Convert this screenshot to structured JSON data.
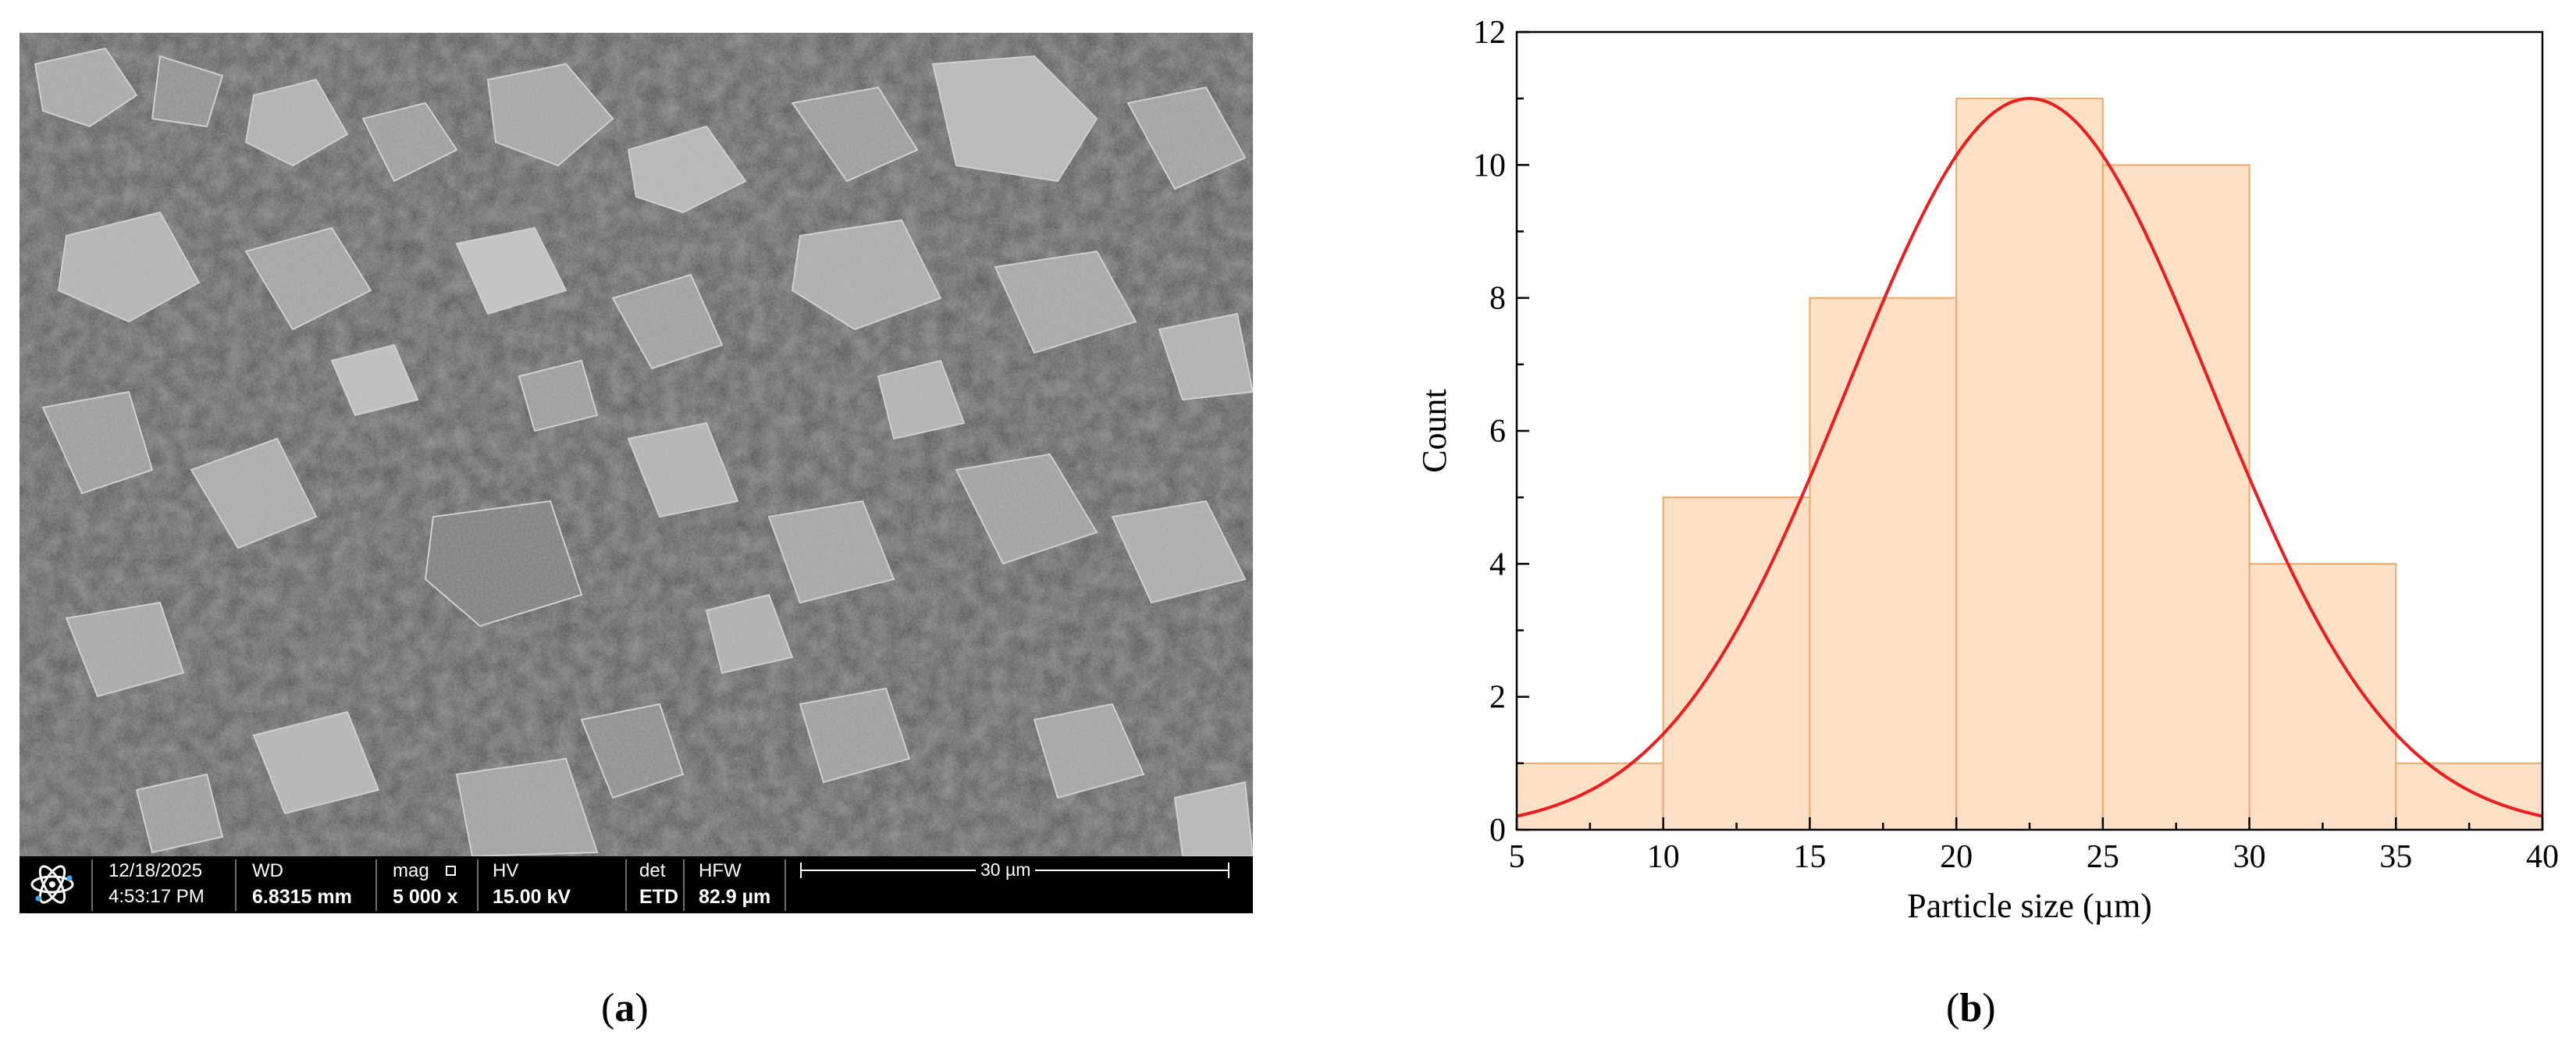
{
  "panel_a": {
    "caption_letter": "a",
    "databar": {
      "date": "12/18/2025",
      "time": "4:53:17 PM",
      "wd_label": "WD",
      "wd_value": "6.8315 mm",
      "mag_label": "mag",
      "mag_value": "5 000 x",
      "hv_label": "HV",
      "hv_value": "15.00 kV",
      "det_label": "det",
      "det_value": "ETD",
      "hfw_label": "HFW",
      "hfw_value": "82.9 µm",
      "scale_label": "30 µm",
      "logo_icon": "atom-icon"
    }
  },
  "panel_b": {
    "caption_letter": "b",
    "colors": {
      "bar_fill": "#fde0c5",
      "bar_stroke": "#f0a868",
      "fit_curve": "#ee1c1c"
    },
    "chart_data": {
      "type": "bar",
      "subtype": "histogram-with-normal-fit",
      "xlabel": "Particle size (µm)",
      "ylabel": "Count",
      "xlim": [
        5,
        40
      ],
      "ylim": [
        0,
        12
      ],
      "xticks": [
        5,
        10,
        15,
        20,
        25,
        30,
        35,
        40
      ],
      "yticks": [
        0,
        2,
        4,
        6,
        8,
        10,
        12
      ],
      "bins": [
        {
          "x0": 5,
          "x1": 10,
          "count": 1
        },
        {
          "x0": 10,
          "x1": 15,
          "count": 5
        },
        {
          "x0": 15,
          "x1": 20,
          "count": 8
        },
        {
          "x0": 20,
          "x1": 25,
          "count": 11
        },
        {
          "x0": 25,
          "x1": 30,
          "count": 10
        },
        {
          "x0": 30,
          "x1": 35,
          "count": 4
        },
        {
          "x0": 35,
          "x1": 40,
          "count": 1
        }
      ],
      "fit": {
        "type": "normal",
        "mean": 22.5,
        "sd": 6.2,
        "peak": 11
      },
      "grid": false,
      "legend": "none"
    }
  }
}
